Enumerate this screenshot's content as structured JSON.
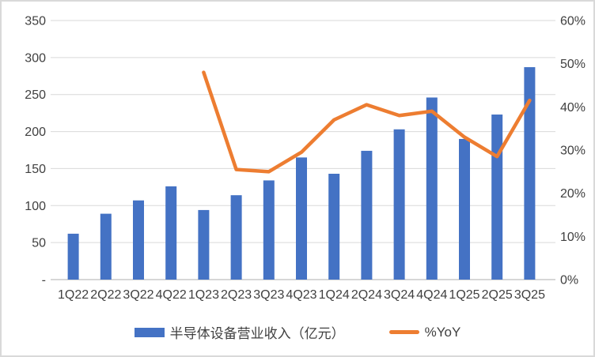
{
  "chart_data": {
    "type": "bar",
    "subtype": "bar+line-combo",
    "title": "",
    "categories": [
      "1Q22",
      "2Q22",
      "3Q22",
      "4Q22",
      "1Q23",
      "2Q23",
      "3Q23",
      "4Q23",
      "1Q24",
      "2Q24",
      "3Q24",
      "4Q24",
      "1Q25",
      "2Q25",
      "3Q25"
    ],
    "series": [
      {
        "name": "半导体设备营业收入（亿元）",
        "type": "bar",
        "axis": "left",
        "color": "#4472C4",
        "values": [
          62,
          89,
          107,
          126,
          94,
          114,
          134,
          165,
          143,
          174,
          203,
          246,
          190,
          223,
          287
        ]
      },
      {
        "name": "%YoY",
        "type": "line",
        "axis": "right",
        "color": "#ED7D31",
        "values": [
          null,
          null,
          null,
          null,
          48,
          25.5,
          25,
          29.5,
          37,
          40.5,
          38,
          39,
          33,
          28.5,
          41.5
        ]
      }
    ],
    "left_axis": {
      "min": 0,
      "max": 350,
      "step": 50,
      "tick_labels": [
        "-",
        "50",
        "100",
        "150",
        "200",
        "250",
        "300",
        "350"
      ]
    },
    "right_axis": {
      "min": 0,
      "max": 60,
      "step": 10,
      "tick_labels": [
        "0%",
        "10%",
        "20%",
        "30%",
        "40%",
        "50%",
        "60%"
      ]
    },
    "grid": true,
    "legend_position": "bottom"
  },
  "colors": {
    "gridline": "#d9d9d9",
    "axis_line": "#bfbfbf",
    "tick_text": "#404040",
    "frame_border": "#d9d9d9",
    "background": "#ffffff"
  }
}
